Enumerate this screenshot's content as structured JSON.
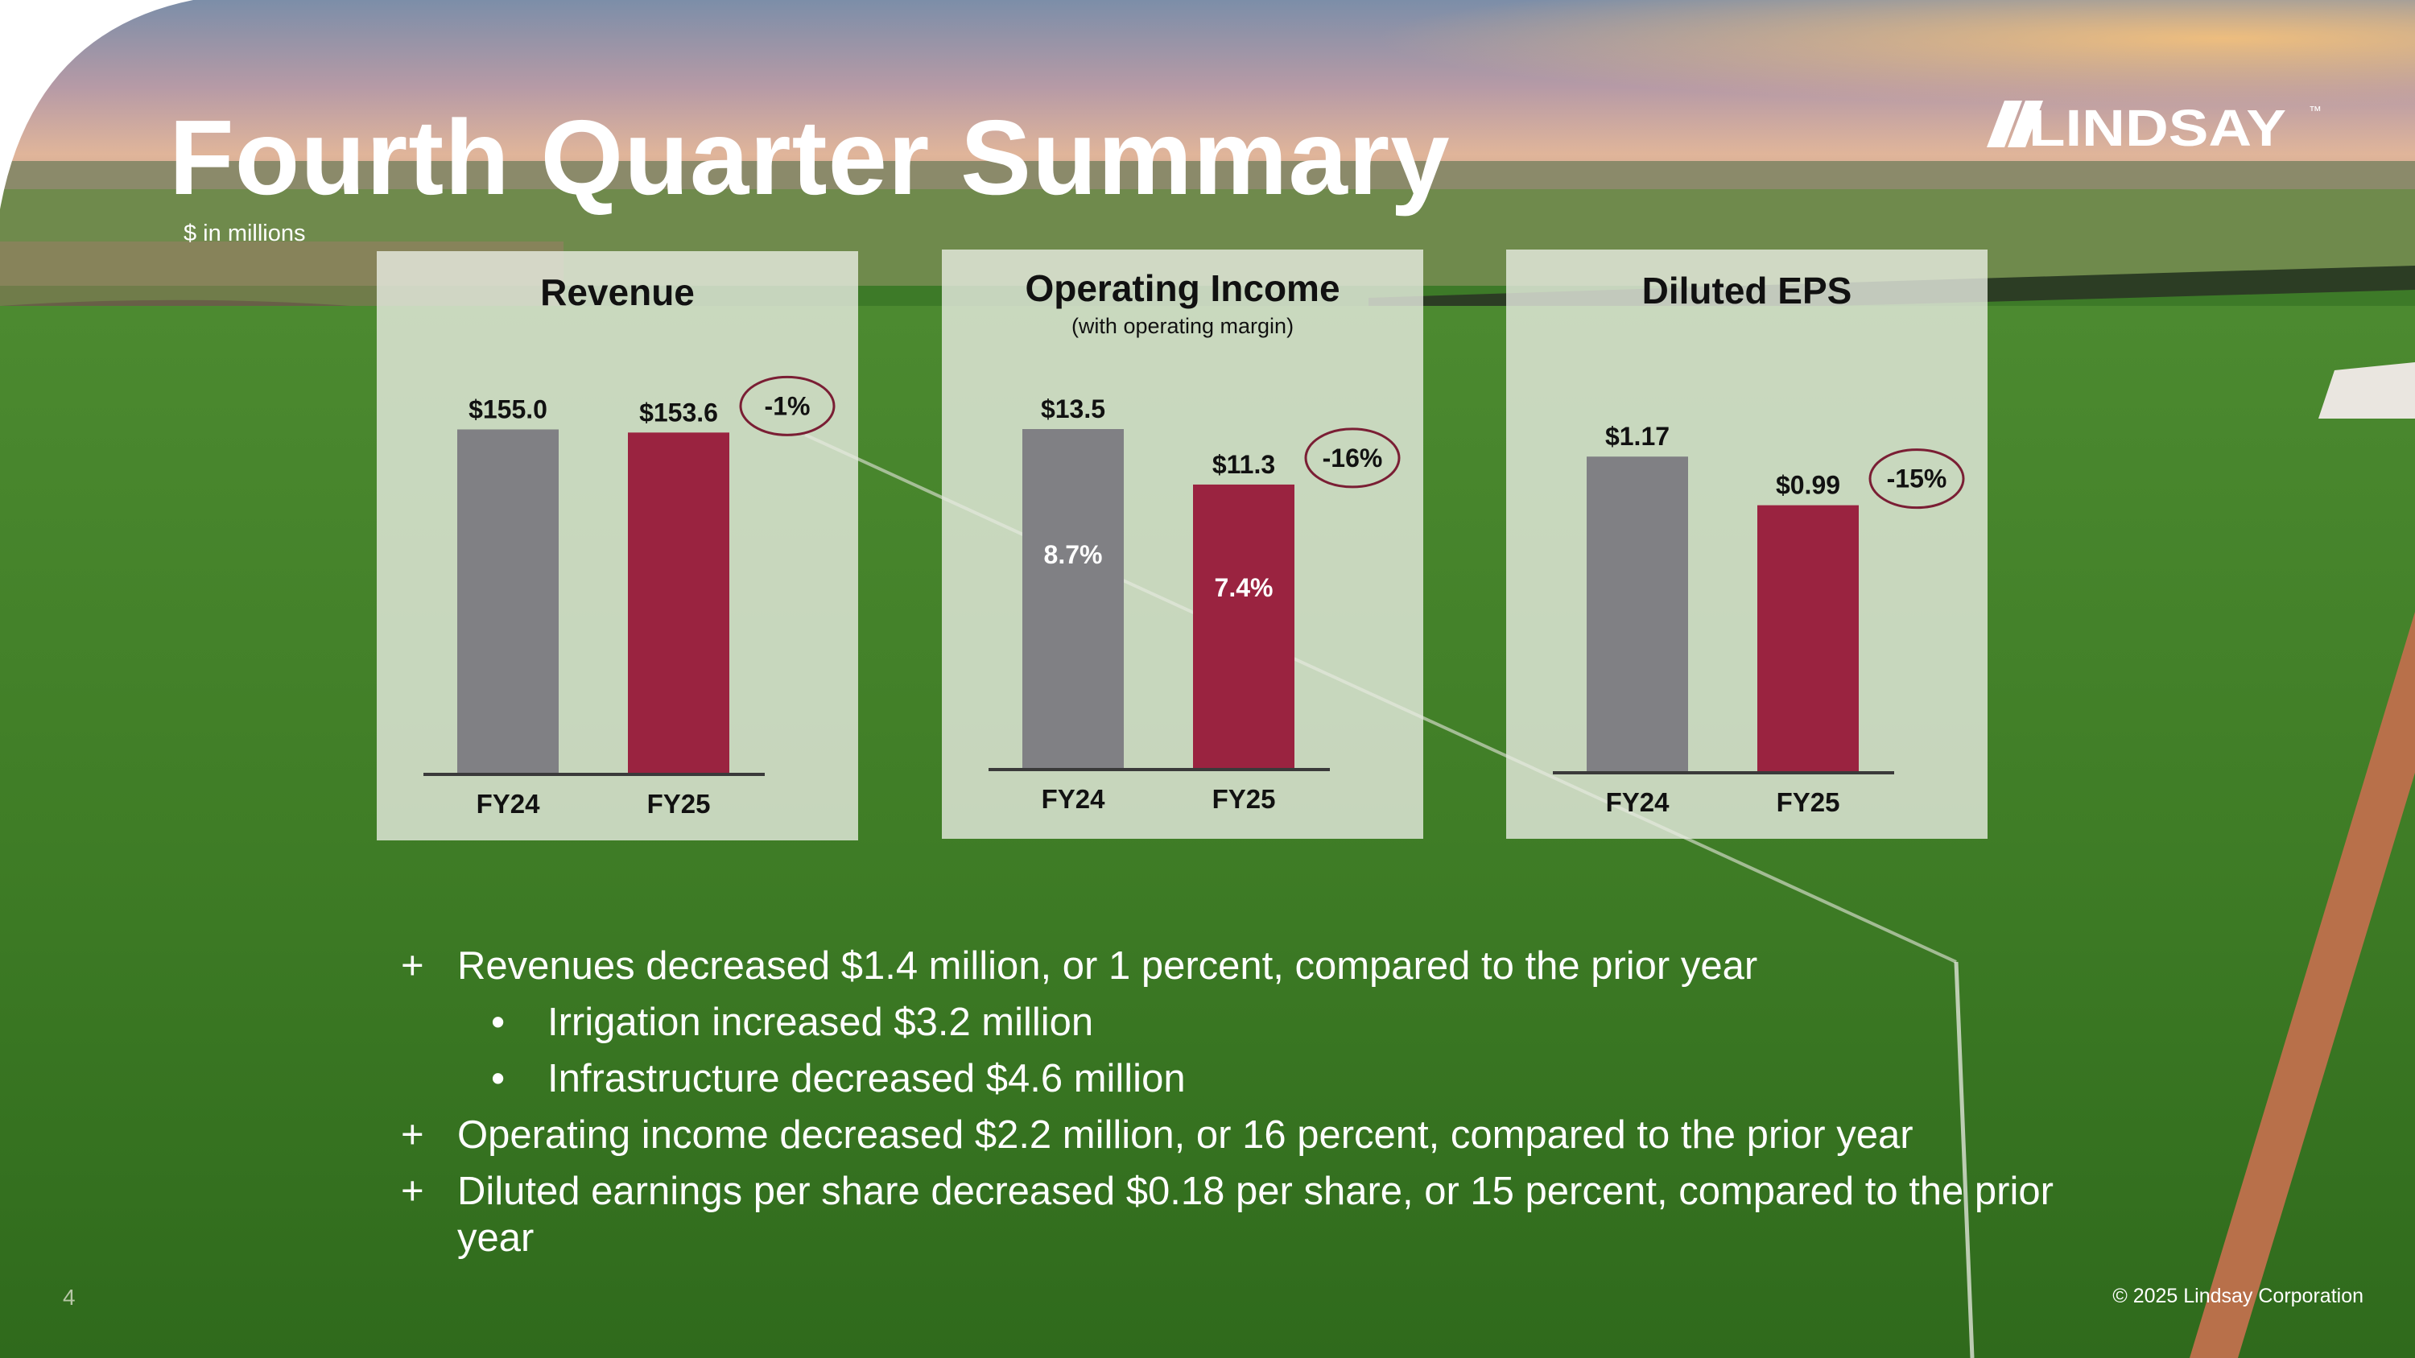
{
  "slide": {
    "title": "Fourth Quarter Summary",
    "subtitle": "$ in millions",
    "page_number": "4",
    "copyright": "© 2025 Lindsay Corporation",
    "logo_text": "LINDSAY",
    "logo_tm": "™"
  },
  "colors": {
    "fy24": "#808084",
    "fy25": "#9a2340",
    "oval": "#7a1e34",
    "axis": "#3a3a3a"
  },
  "chart_data": [
    {
      "type": "bar",
      "title": "Revenue",
      "subtitle": "",
      "categories": [
        "FY24",
        "FY25"
      ],
      "values": [
        155.0,
        153.6
      ],
      "labels": [
        "$155.0",
        "$153.6"
      ],
      "inner_labels": [
        "",
        ""
      ],
      "change": "-1%",
      "ylim": [
        0,
        170
      ]
    },
    {
      "type": "bar",
      "title": "Operating Income",
      "subtitle": "(with operating margin)",
      "categories": [
        "FY24",
        "FY25"
      ],
      "values": [
        13.5,
        11.3
      ],
      "labels": [
        "$13.5",
        "$11.3"
      ],
      "inner_labels": [
        "8.7%",
        "7.4%"
      ],
      "change": "-16%",
      "ylim": [
        0,
        15
      ]
    },
    {
      "type": "bar",
      "title": "Diluted EPS",
      "subtitle": "",
      "categories": [
        "FY24",
        "FY25"
      ],
      "values": [
        1.17,
        0.99
      ],
      "labels": [
        "$1.17",
        "$0.99"
      ],
      "inner_labels": [
        "",
        ""
      ],
      "change": "-15%",
      "ylim": [
        0,
        1.4
      ]
    }
  ],
  "bullets": [
    {
      "marker": "+",
      "text": "Revenues decreased $1.4 million, or 1 percent, compared to the prior year",
      "level": 1
    },
    {
      "marker": "•",
      "text": "Irrigation increased $3.2 million",
      "level": 2
    },
    {
      "marker": "•",
      "text": "Infrastructure decreased $4.6 million",
      "level": 2
    },
    {
      "marker": "+",
      "text": "Operating income decreased $2.2 million, or 16 percent, compared to the prior year",
      "level": 1
    },
    {
      "marker": "+",
      "text": "Diluted earnings per share decreased $0.18 per share, or 15 percent, compared to the prior year",
      "level": 1
    }
  ]
}
